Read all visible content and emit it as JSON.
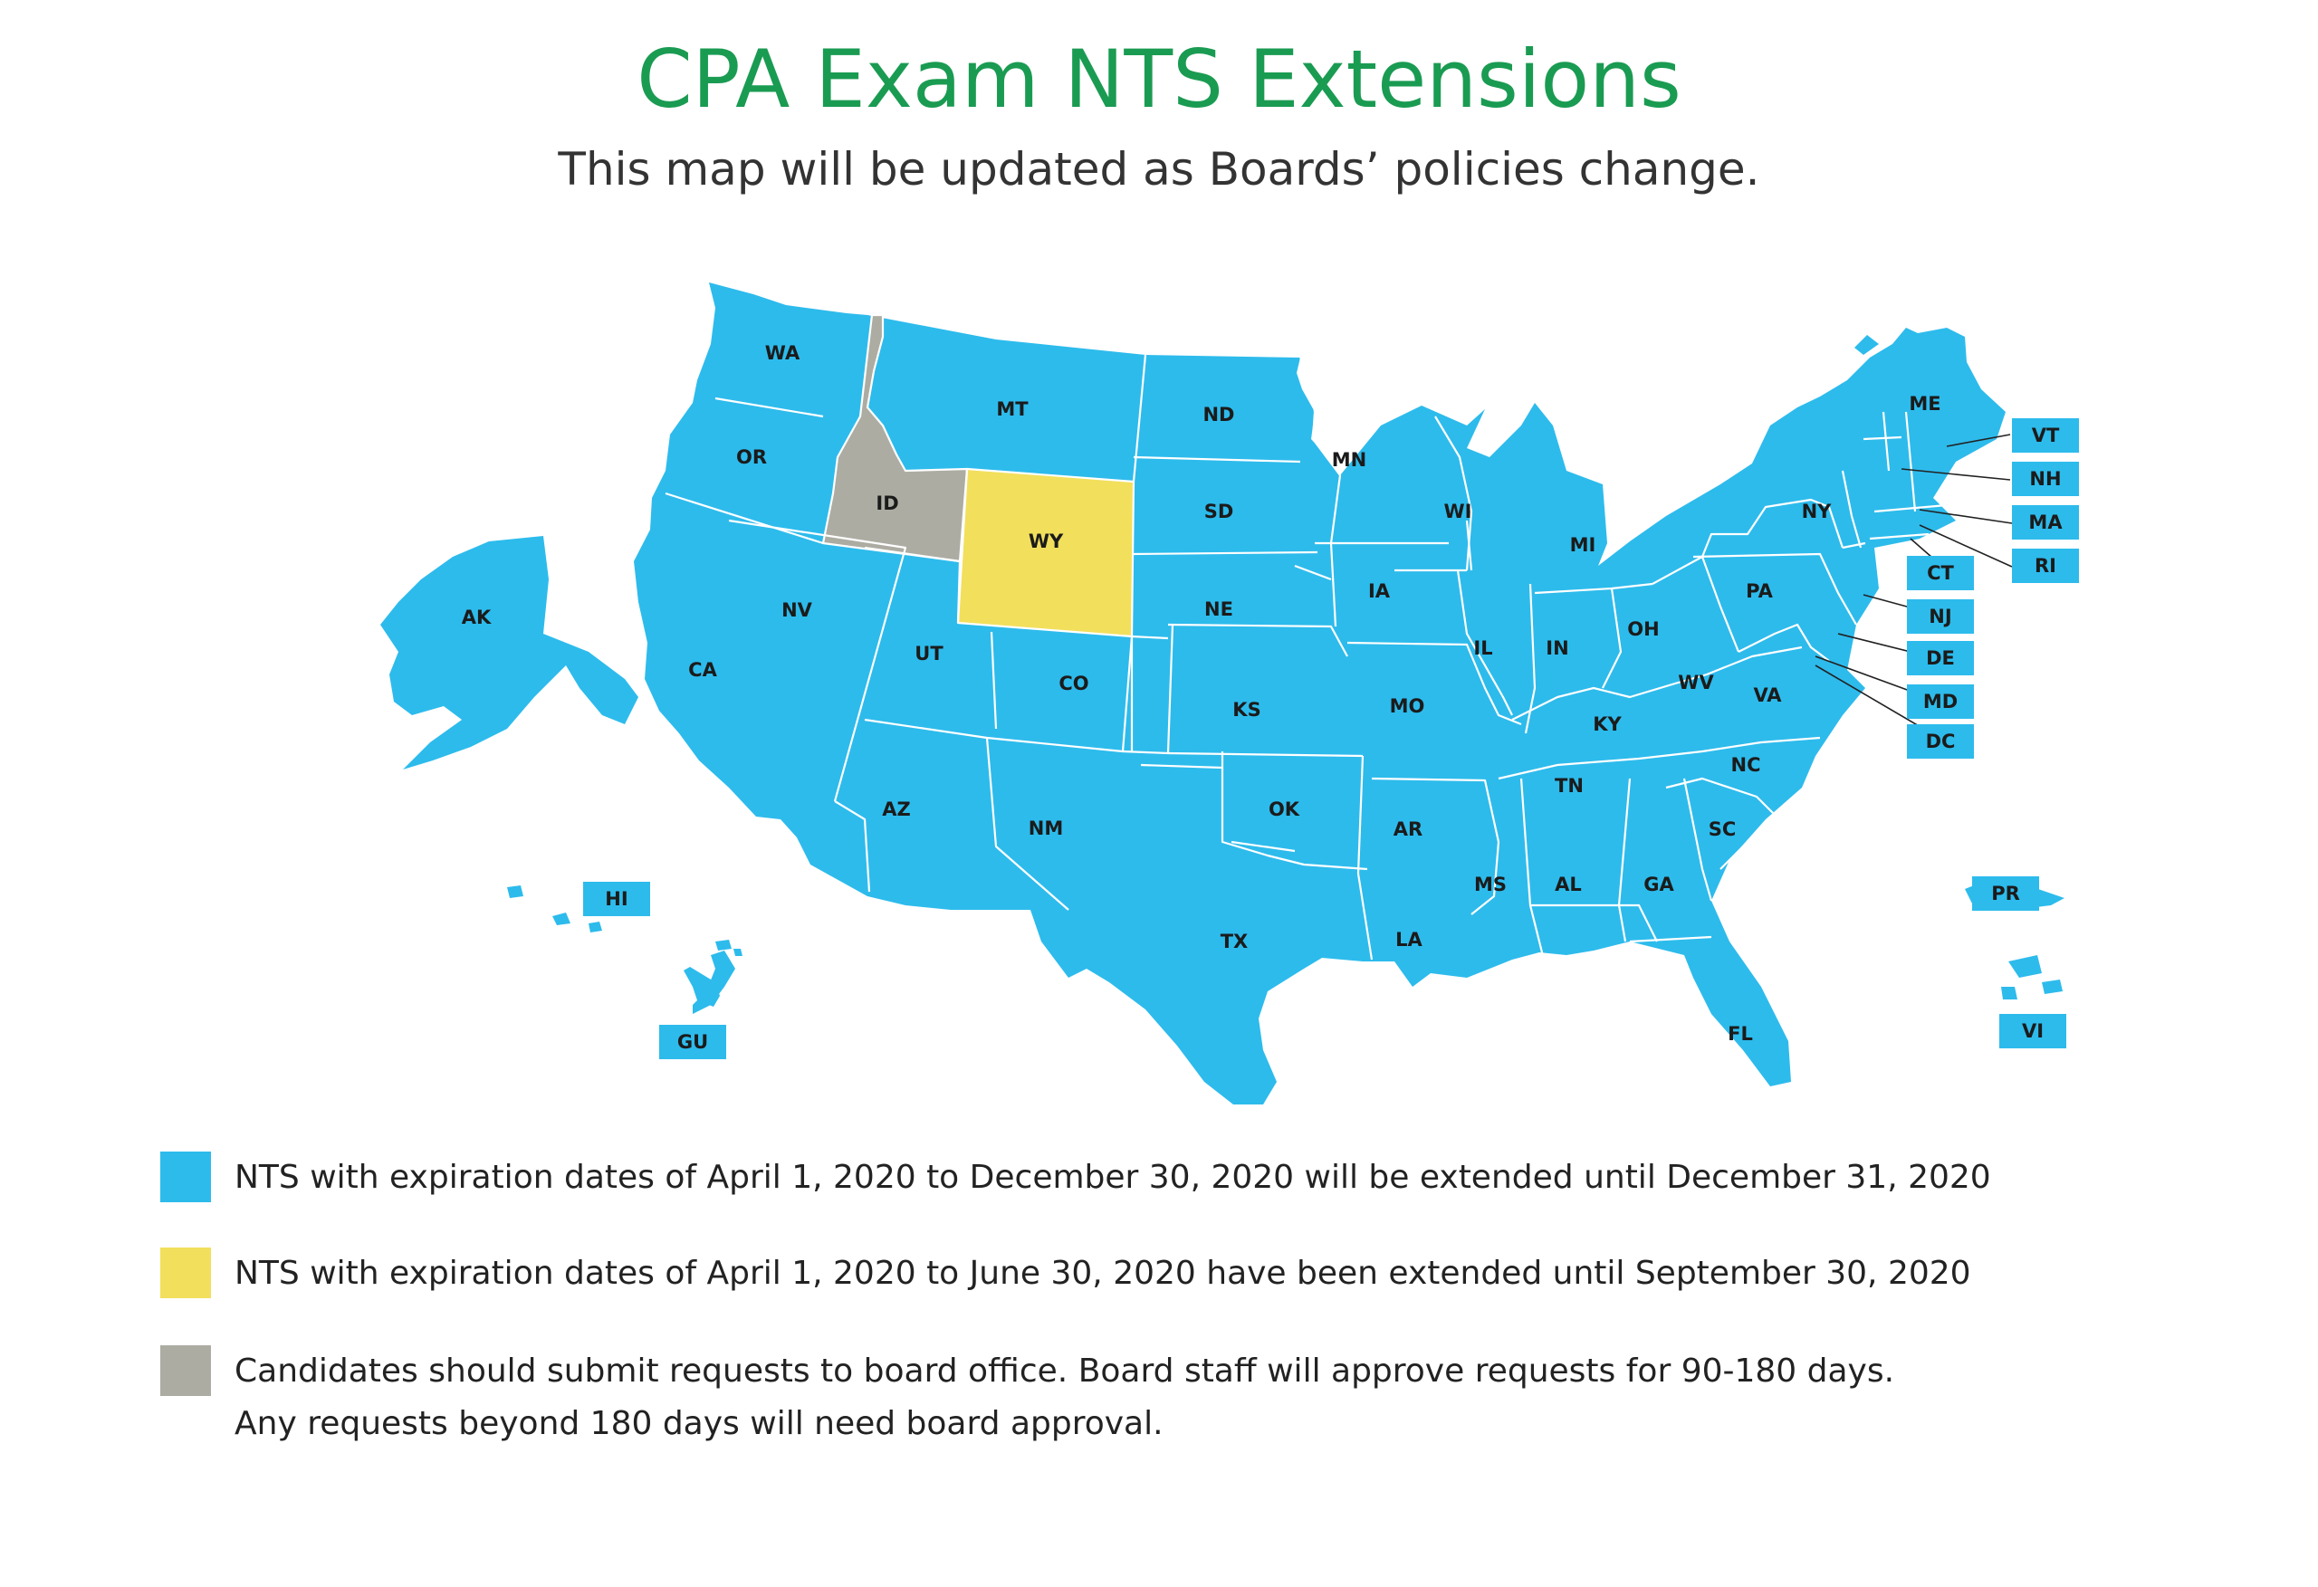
{
  "header": {
    "title": "CPA Exam NTS Extensions",
    "subtitle": "This map will be updated as Boards’ policies change."
  },
  "colors": {
    "extended_dec31": "#2dbbec",
    "extended_sep30": "#f2df5c",
    "board_request": "#adaca3",
    "border": "#ffffff",
    "label_text": "#1b1b1b"
  },
  "map": {
    "states": [
      {
        "label": "WA",
        "category": "extended_dec31"
      },
      {
        "label": "OR",
        "category": "extended_dec31"
      },
      {
        "label": "CA",
        "category": "extended_dec31"
      },
      {
        "label": "NV",
        "category": "extended_dec31"
      },
      {
        "label": "ID",
        "category": "board_request"
      },
      {
        "label": "MT",
        "category": "extended_dec31"
      },
      {
        "label": "WY",
        "category": "extended_sep30"
      },
      {
        "label": "UT",
        "category": "extended_dec31"
      },
      {
        "label": "AZ",
        "category": "extended_dec31"
      },
      {
        "label": "CO",
        "category": "extended_dec31"
      },
      {
        "label": "NM",
        "category": "extended_dec31"
      },
      {
        "label": "ND",
        "category": "extended_dec31"
      },
      {
        "label": "SD",
        "category": "extended_dec31"
      },
      {
        "label": "NE",
        "category": "extended_dec31"
      },
      {
        "label": "KS",
        "category": "extended_dec31"
      },
      {
        "label": "OK",
        "category": "extended_dec31"
      },
      {
        "label": "TX",
        "category": "extended_dec31"
      },
      {
        "label": "MN",
        "category": "extended_dec31"
      },
      {
        "label": "IA",
        "category": "extended_dec31"
      },
      {
        "label": "MO",
        "category": "extended_dec31"
      },
      {
        "label": "AR",
        "category": "extended_dec31"
      },
      {
        "label": "LA",
        "category": "extended_dec31"
      },
      {
        "label": "WI",
        "category": "extended_dec31"
      },
      {
        "label": "IL",
        "category": "extended_dec31"
      },
      {
        "label": "MI",
        "category": "extended_dec31"
      },
      {
        "label": "IN",
        "category": "extended_dec31"
      },
      {
        "label": "OH",
        "category": "extended_dec31"
      },
      {
        "label": "KY",
        "category": "extended_dec31"
      },
      {
        "label": "TN",
        "category": "extended_dec31"
      },
      {
        "label": "MS",
        "category": "extended_dec31"
      },
      {
        "label": "AL",
        "category": "extended_dec31"
      },
      {
        "label": "GA",
        "category": "extended_dec31"
      },
      {
        "label": "FL",
        "category": "extended_dec31"
      },
      {
        "label": "SC",
        "category": "extended_dec31"
      },
      {
        "label": "NC",
        "category": "extended_dec31"
      },
      {
        "label": "VA",
        "category": "extended_dec31"
      },
      {
        "label": "WV",
        "category": "extended_dec31"
      },
      {
        "label": "PA",
        "category": "extended_dec31"
      },
      {
        "label": "NY",
        "category": "extended_dec31"
      },
      {
        "label": "ME",
        "category": "extended_dec31"
      },
      {
        "label": "AK",
        "category": "extended_dec31"
      }
    ],
    "callouts": [
      {
        "label": "VT",
        "category": "extended_dec31"
      },
      {
        "label": "NH",
        "category": "extended_dec31"
      },
      {
        "label": "MA",
        "category": "extended_dec31"
      },
      {
        "label": "RI",
        "category": "extended_dec31"
      },
      {
        "label": "CT",
        "category": "extended_dec31"
      },
      {
        "label": "NJ",
        "category": "extended_dec31"
      },
      {
        "label": "DE",
        "category": "extended_dec31"
      },
      {
        "label": "MD",
        "category": "extended_dec31"
      },
      {
        "label": "DC",
        "category": "extended_dec31"
      },
      {
        "label": "HI",
        "category": "extended_dec31"
      },
      {
        "label": "GU",
        "category": "extended_dec31"
      },
      {
        "label": "PR",
        "category": "extended_dec31"
      },
      {
        "label": "VI",
        "category": "extended_dec31"
      }
    ]
  },
  "legend": [
    {
      "category": "extended_dec31",
      "lines": [
        "NTS with expiration dates of April 1, 2020 to December 30, 2020 will be extended until December 31, 2020"
      ]
    },
    {
      "category": "extended_sep30",
      "lines": [
        "NTS with expiration dates of April 1, 2020 to June 30, 2020 have been extended until September 30, 2020"
      ]
    },
    {
      "category": "board_request",
      "lines": [
        "Candidates should submit requests to board office. Board staff will approve requests for 90-180 days.",
        "Any requests beyond 180 days will need  board approval."
      ]
    }
  ]
}
